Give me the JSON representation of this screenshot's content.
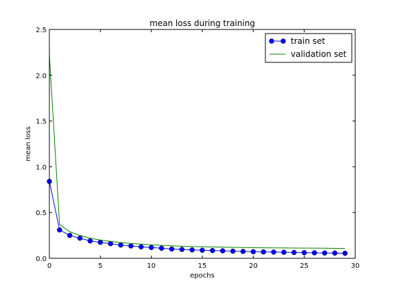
{
  "chart_data": {
    "type": "line",
    "title": "mean loss during training",
    "xlabel": "epochs",
    "ylabel": "mean loss",
    "xlim": [
      0,
      30
    ],
    "ylim": [
      0,
      2.5
    ],
    "xticks": [
      0,
      5,
      10,
      15,
      20,
      25,
      30
    ],
    "yticks": [
      0.0,
      0.5,
      1.0,
      1.5,
      2.0,
      2.5
    ],
    "xtick_labels": [
      "0",
      "5",
      "10",
      "15",
      "20",
      "25",
      "30"
    ],
    "ytick_labels": [
      "0.0",
      "0.5",
      "1.0",
      "1.5",
      "2.0",
      "2.5"
    ],
    "legend_position": "top-right",
    "grid": false,
    "x": [
      0,
      1,
      2,
      3,
      4,
      5,
      6,
      7,
      8,
      9,
      10,
      11,
      12,
      13,
      14,
      15,
      16,
      17,
      18,
      19,
      20,
      21,
      22,
      23,
      24,
      25,
      26,
      27,
      28,
      29
    ],
    "series": [
      {
        "name": "train set",
        "color": "#0000ff",
        "marker": "circle",
        "values": [
          0.84,
          0.31,
          0.25,
          0.22,
          0.19,
          0.175,
          0.16,
          0.145,
          0.135,
          0.125,
          0.118,
          0.11,
          0.102,
          0.097,
          0.092,
          0.088,
          0.085,
          0.082,
          0.078,
          0.075,
          0.072,
          0.07,
          0.068,
          0.066,
          0.064,
          0.062,
          0.06,
          0.058,
          0.057,
          0.055
        ]
      },
      {
        "name": "validation set",
        "color": "#008000",
        "marker": "none",
        "values": [
          2.22,
          0.37,
          0.29,
          0.25,
          0.22,
          0.2,
          0.185,
          0.172,
          0.162,
          0.155,
          0.148,
          0.142,
          0.137,
          0.132,
          0.128,
          0.126,
          0.124,
          0.122,
          0.12,
          0.118,
          0.116,
          0.115,
          0.114,
          0.113,
          0.112,
          0.111,
          0.111,
          0.11,
          0.109,
          0.108
        ]
      }
    ]
  }
}
